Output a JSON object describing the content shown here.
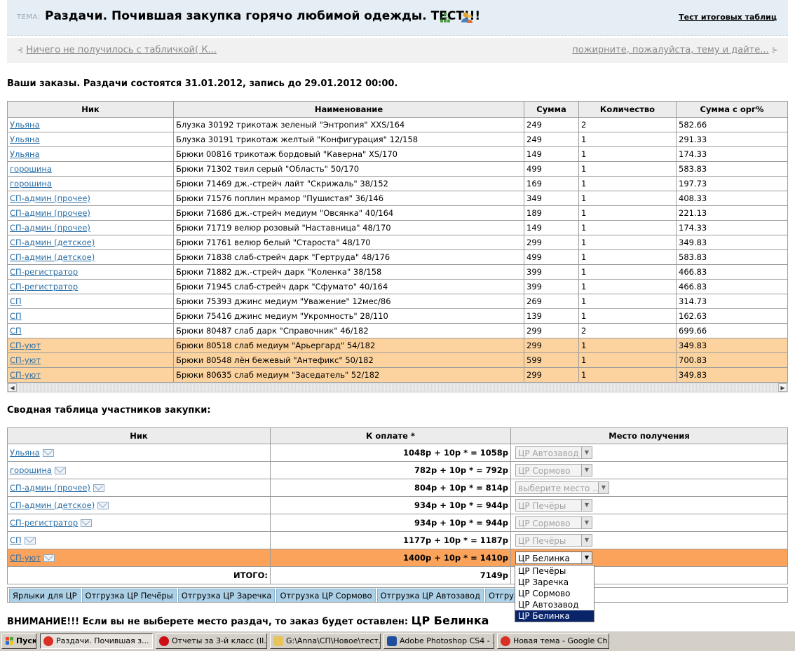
{
  "topic": {
    "tag": "ТЕМА:",
    "title": "Раздачи. Почившая закупка горячо любимой одежды. ТЕСТ!!!",
    "right_link": "Тест итоговых таблиц"
  },
  "nav": {
    "prev": "Ничего не получилось с табличкой( К...",
    "next": "пожирните, пожалуйста, тему и дайте..."
  },
  "orders_heading": "Ваши заказы. Раздачи состоятся 31.01.2012, запись до 29.01.2012 00:00.",
  "orders": {
    "headers": [
      "Ник",
      "Наименование",
      "Сумма",
      "Количество",
      "Сумма с орг%"
    ],
    "rows": [
      {
        "nick": "Ульяна",
        "item": "Блузка 30192 трикотаж зеленый \"Энтропия\" XXS/164",
        "sum": "249",
        "qty": "2",
        "total": "582.66",
        "hl": false
      },
      {
        "nick": "Ульяна",
        "item": "Блузка 30191 трикотаж желтый \"Конфигурация\" 12/158",
        "sum": "249",
        "qty": "1",
        "total": "291.33",
        "hl": false
      },
      {
        "nick": "Ульяна",
        "item": "Брюки 00816 трикотаж бордовый \"Каверна\" XS/170",
        "sum": "149",
        "qty": "1",
        "total": "174.33",
        "hl": false
      },
      {
        "nick": "горошина",
        "item": "Брюки 71302 твил серый \"Область\" 50/170",
        "sum": "499",
        "qty": "1",
        "total": "583.83",
        "hl": false
      },
      {
        "nick": "горошина",
        "item": "Брюки 71469 дж.-стрейч лайт \"Скрижаль\" 38/152",
        "sum": "169",
        "qty": "1",
        "total": "197.73",
        "hl": false
      },
      {
        "nick": "СП-админ (прочее)",
        "item": "Брюки 71576 поплин мрамор \"Пушистая\" 36/146",
        "sum": "349",
        "qty": "1",
        "total": "408.33",
        "hl": false
      },
      {
        "nick": "СП-админ (прочее)",
        "item": "Брюки 71686 дж.-стрейч медиум \"Овсянка\" 40/164",
        "sum": "189",
        "qty": "1",
        "total": "221.13",
        "hl": false
      },
      {
        "nick": "СП-админ (прочее)",
        "item": "Брюки 71719 велюр розовый \"Наставница\" 48/170",
        "sum": "149",
        "qty": "1",
        "total": "174.33",
        "hl": false
      },
      {
        "nick": "СП-админ (детское)",
        "item": "Брюки 71761 велюр белый \"Староста\" 48/170",
        "sum": "299",
        "qty": "1",
        "total": "349.83",
        "hl": false
      },
      {
        "nick": "СП-админ (детское)",
        "item": "Брюки 71838 слаб-стрейч дарк \"Гертруда\" 48/176",
        "sum": "499",
        "qty": "1",
        "total": "583.83",
        "hl": false
      },
      {
        "nick": "СП-регистратор",
        "item": "Брюки 71882 дж.-стрейч дарк \"Коленка\" 38/158",
        "sum": "399",
        "qty": "1",
        "total": "466.83",
        "hl": false
      },
      {
        "nick": "СП-регистратор",
        "item": "Брюки 71945 слаб-стрейч дарк \"Сфумато\" 40/164",
        "sum": "399",
        "qty": "1",
        "total": "466.83",
        "hl": false
      },
      {
        "nick": "СП",
        "item": "Брюки 75393 джинс медиум \"Уважение\" 12мес/86",
        "sum": "269",
        "qty": "1",
        "total": "314.73",
        "hl": false
      },
      {
        "nick": "СП",
        "item": "Брюки 75416 джинс медиум \"Укромность\" 28/110",
        "sum": "139",
        "qty": "1",
        "total": "162.63",
        "hl": false
      },
      {
        "nick": "СП",
        "item": "Брюки 80487 слаб дарк \"Справочник\" 46/182",
        "sum": "299",
        "qty": "2",
        "total": "699.66",
        "hl": false
      },
      {
        "nick": "СП-уют",
        "item": "Брюки 80518 слаб медиум \"Арьергард\" 54/182",
        "sum": "299",
        "qty": "1",
        "total": "349.83",
        "hl": true
      },
      {
        "nick": "СП-уют",
        "item": "Брюки 80548 лён бежевый \"Антефикс\" 50/182",
        "sum": "599",
        "qty": "1",
        "total": "700.83",
        "hl": true
      },
      {
        "nick": "СП-уют",
        "item": "Брюки 80635 слаб медиум \"Заседатель\" 52/182",
        "sum": "299",
        "qty": "1",
        "total": "349.83",
        "hl": true
      }
    ]
  },
  "summary_heading": "Сводная таблица участников закупки:",
  "summary": {
    "headers": [
      "Ник",
      "К оплате *",
      "Место получения"
    ],
    "rows": [
      {
        "nick": "Ульяна",
        "pay": "1048р + 10р * = 1058р",
        "place": "ЦР Автозавод",
        "hl": false,
        "active": false
      },
      {
        "nick": "горошина",
        "pay": "782р + 10р * = 792р",
        "place": "ЦР Сормово",
        "hl": false,
        "active": false
      },
      {
        "nick": "СП-админ (прочее)",
        "pay": "804р + 10р * = 814р",
        "place": "выберите место ...",
        "hl": false,
        "active": false
      },
      {
        "nick": "СП-админ (детское)",
        "pay": "934р + 10р * = 944р",
        "place": "ЦР Печёры",
        "hl": false,
        "active": false
      },
      {
        "nick": "СП-регистратор",
        "pay": "934р + 10р * = 944р",
        "place": "ЦР Сормово",
        "hl": false,
        "active": false
      },
      {
        "nick": "СП",
        "pay": "1177р + 10р * = 1187р",
        "place": "ЦР Печёры",
        "hl": false,
        "active": false
      },
      {
        "nick": "СП-уют",
        "pay": "1400р + 10р * = 1410р",
        "place": "ЦР Белинка",
        "hl": true,
        "active": true
      }
    ],
    "total_label": "ИТОГО:",
    "total_value": "7149р"
  },
  "buttons": [
    "Ярлыки для ЦР",
    "Отгрузка ЦР Печёры",
    "Отгрузка ЦР Заречка",
    "Отгрузка ЦР Сормово",
    "Отгрузка ЦР Автозавод",
    "Отгрузка ЦР Белинка"
  ],
  "dropdown": {
    "options": [
      "ЦР Печёры",
      "ЦР Заречка",
      "ЦР Сормово",
      "ЦР Автозавод",
      "ЦР Белинка"
    ],
    "selected": "ЦР Белинка"
  },
  "warning": {
    "text": "ВНИМАНИЕ!!! Если вы не выберете место раздач, то заказ будет оставлен: ",
    "place": "ЦР Белинка"
  },
  "taskbar": {
    "start": "Пуск",
    "tasks": [
      {
        "label": "Раздачи. Почившая з...",
        "icon": "chrome-icon",
        "color": "#d93025",
        "pressed": true
      },
      {
        "label": "Отчеты за 3-й класс (II...",
        "icon": "opera-icon",
        "color": "#cc0f16",
        "pressed": false
      },
      {
        "label": "G:\\Anna\\СП\\Новое\\тест...",
        "icon": "folder-icon",
        "color": "#e8c35a",
        "pressed": false
      },
      {
        "label": "Adobe Photoshop CS4 - ...",
        "icon": "photoshop-icon",
        "color": "#1f4e9c",
        "pressed": false
      },
      {
        "label": "Новая тема - Google Ch...",
        "icon": "chrome-icon",
        "color": "#d93025",
        "pressed": false
      }
    ]
  }
}
